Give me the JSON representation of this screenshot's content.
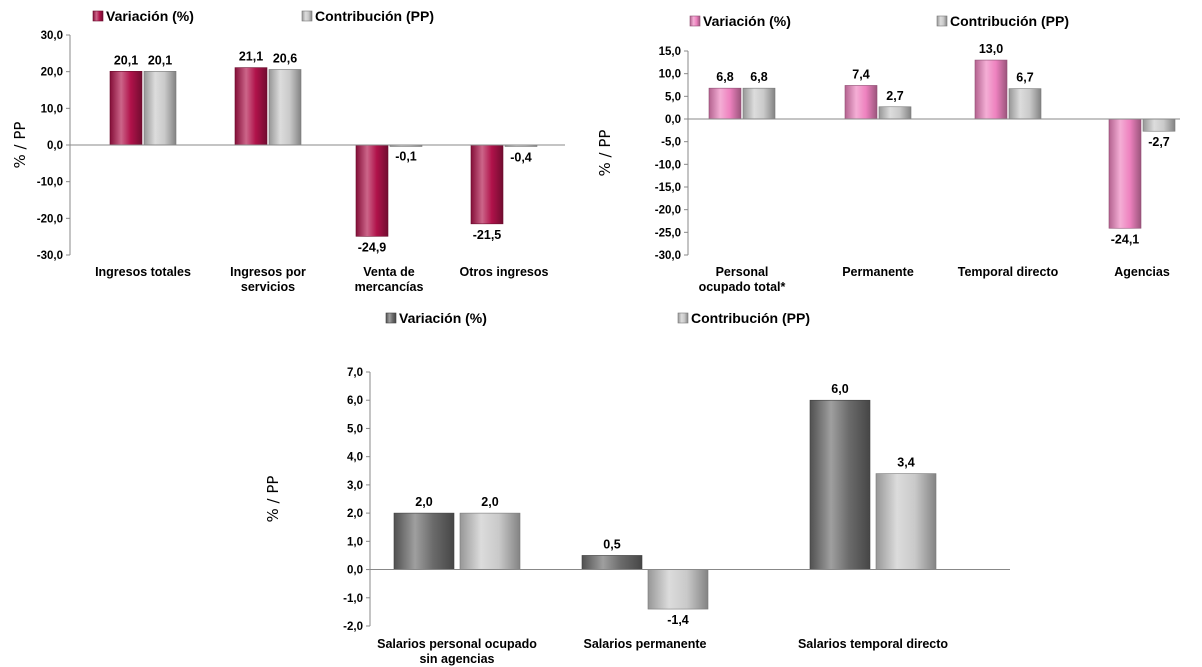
{
  "chart_data": [
    {
      "type": "bar",
      "ylabel": "% / PP",
      "ylim": [
        -30,
        30
      ],
      "yticks": [
        "30,0",
        "20,0",
        "10,0",
        "0,0",
        "-10,0",
        "-20,0",
        "-30,0"
      ],
      "categories": [
        [
          "Ingresos totales"
        ],
        [
          "Ingresos por",
          "servicios"
        ],
        [
          "Venta de",
          "mercancías"
        ],
        [
          "Otros ingresos"
        ]
      ],
      "series": [
        {
          "name": "Variación (%)",
          "values": [
            20.1,
            21.1,
            -24.9,
            -21.5
          ],
          "labels": [
            "20,1",
            "21,1",
            "-24,9",
            "-21,5"
          ],
          "color": "#b0124a"
        },
        {
          "name": "Contribución (PP)",
          "values": [
            20.1,
            20.6,
            -0.1,
            -0.4
          ],
          "labels": [
            "20,1",
            "20,6",
            "-0,1",
            "-0,4"
          ],
          "color": "#c9c9c9"
        }
      ]
    },
    {
      "type": "bar",
      "ylabel": "% / PP",
      "ylim": [
        -30,
        15
      ],
      "yticks": [
        "15,0",
        "10,0",
        "5,0",
        "0,0",
        "-5,0",
        "-10,0",
        "-15,0",
        "-20,0",
        "-25,0",
        "-30,0"
      ],
      "categories": [
        [
          "Personal",
          "ocupado total*"
        ],
        [
          "Permanente"
        ],
        [
          "Temporal directo"
        ],
        [
          "Agencias"
        ]
      ],
      "series": [
        {
          "name": "Variación (%)",
          "values": [
            6.8,
            7.4,
            13.0,
            -24.1
          ],
          "labels": [
            "6,8",
            "7,4",
            "13,0",
            "-24,1"
          ],
          "color": "#ee82bf"
        },
        {
          "name": "Contribución (PP)",
          "values": [
            6.8,
            2.7,
            6.7,
            -2.7
          ],
          "labels": [
            "6,8",
            "2,7",
            "6,7",
            "-2,7"
          ],
          "color": "#c9c9c9"
        }
      ]
    },
    {
      "type": "bar",
      "ylabel": "% / PP",
      "ylim": [
        -2,
        7
      ],
      "yticks": [
        "7,0",
        "6,0",
        "5,0",
        "4,0",
        "3,0",
        "2,0",
        "1,0",
        "0,0",
        "-1,0",
        "-2,0"
      ],
      "categories": [
        [
          "Salarios personal ocupado",
          "sin agencias"
        ],
        [
          "Salarios permanente"
        ],
        [
          "Salarios temporal directo"
        ]
      ],
      "series": [
        {
          "name": "Variación (%)",
          "values": [
            2.0,
            0.5,
            6.0
          ],
          "labels": [
            "2,0",
            "0,5",
            "6,0"
          ],
          "color": "#6b6b6b"
        },
        {
          "name": "Contribución (PP)",
          "values": [
            2.0,
            -1.4,
            3.4
          ],
          "labels": [
            "2,0",
            "-1,4",
            "3,4"
          ],
          "color": "#c9c9c9"
        }
      ]
    }
  ]
}
